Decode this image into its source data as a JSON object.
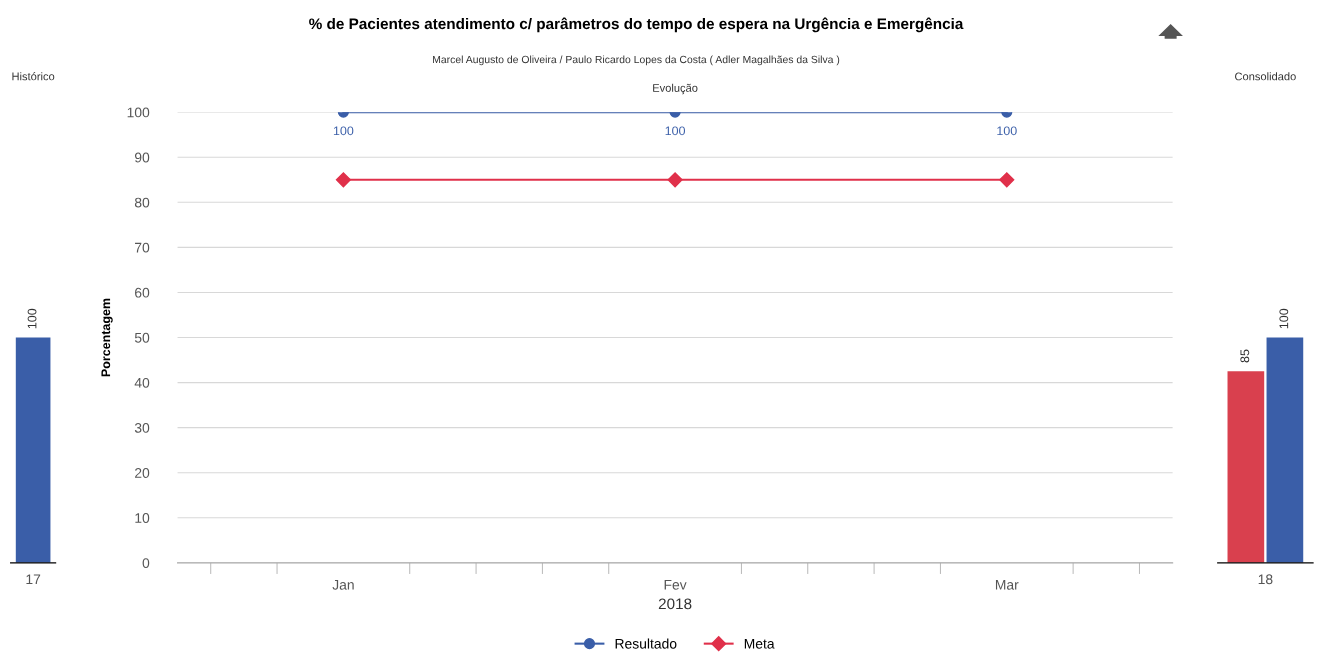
{
  "chart_data": [
    {
      "type": "bar",
      "title": "Histórico",
      "categories": [
        "17"
      ],
      "series": [
        {
          "color": "#3a5ea8",
          "values": [
            100
          ]
        }
      ],
      "data_labels": true
    },
    {
      "type": "line",
      "title": "% de Pacientes atendimento c/ parâmetros do tempo de espera na Urgência e Emergência",
      "subtitle": "Marcel Augusto de Oliveira / Paulo Ricardo Lopes da Costa ( Adler Magalhães da Silva )",
      "annotations": [
        "Evolução"
      ],
      "categories": [
        "Jan",
        "Fev",
        "Mar"
      ],
      "xlabel": "2018",
      "ylabel": "Porcentagem",
      "ylim": [
        0,
        100
      ],
      "yticks": [
        0,
        10,
        20,
        30,
        40,
        50,
        60,
        70,
        80,
        90,
        100
      ],
      "series": [
        {
          "name": "Resultado",
          "color": "#3a5ea8",
          "marker": "circle",
          "values": [
            100,
            100,
            100
          ],
          "value_labels": [
            "100",
            "100",
            "100"
          ]
        },
        {
          "name": "Meta",
          "color": "#e0304a",
          "marker": "diamond",
          "values": [
            85,
            85,
            85
          ]
        }
      ],
      "grid": "y",
      "legend": "bottom"
    },
    {
      "type": "bar",
      "title": "Consolidado",
      "categories": [
        "18"
      ],
      "series": [
        {
          "color": "#d9404e",
          "values": [
            85
          ]
        },
        {
          "color": "#3a5ea8",
          "values": [
            100
          ]
        }
      ],
      "data_labels": true
    }
  ]
}
